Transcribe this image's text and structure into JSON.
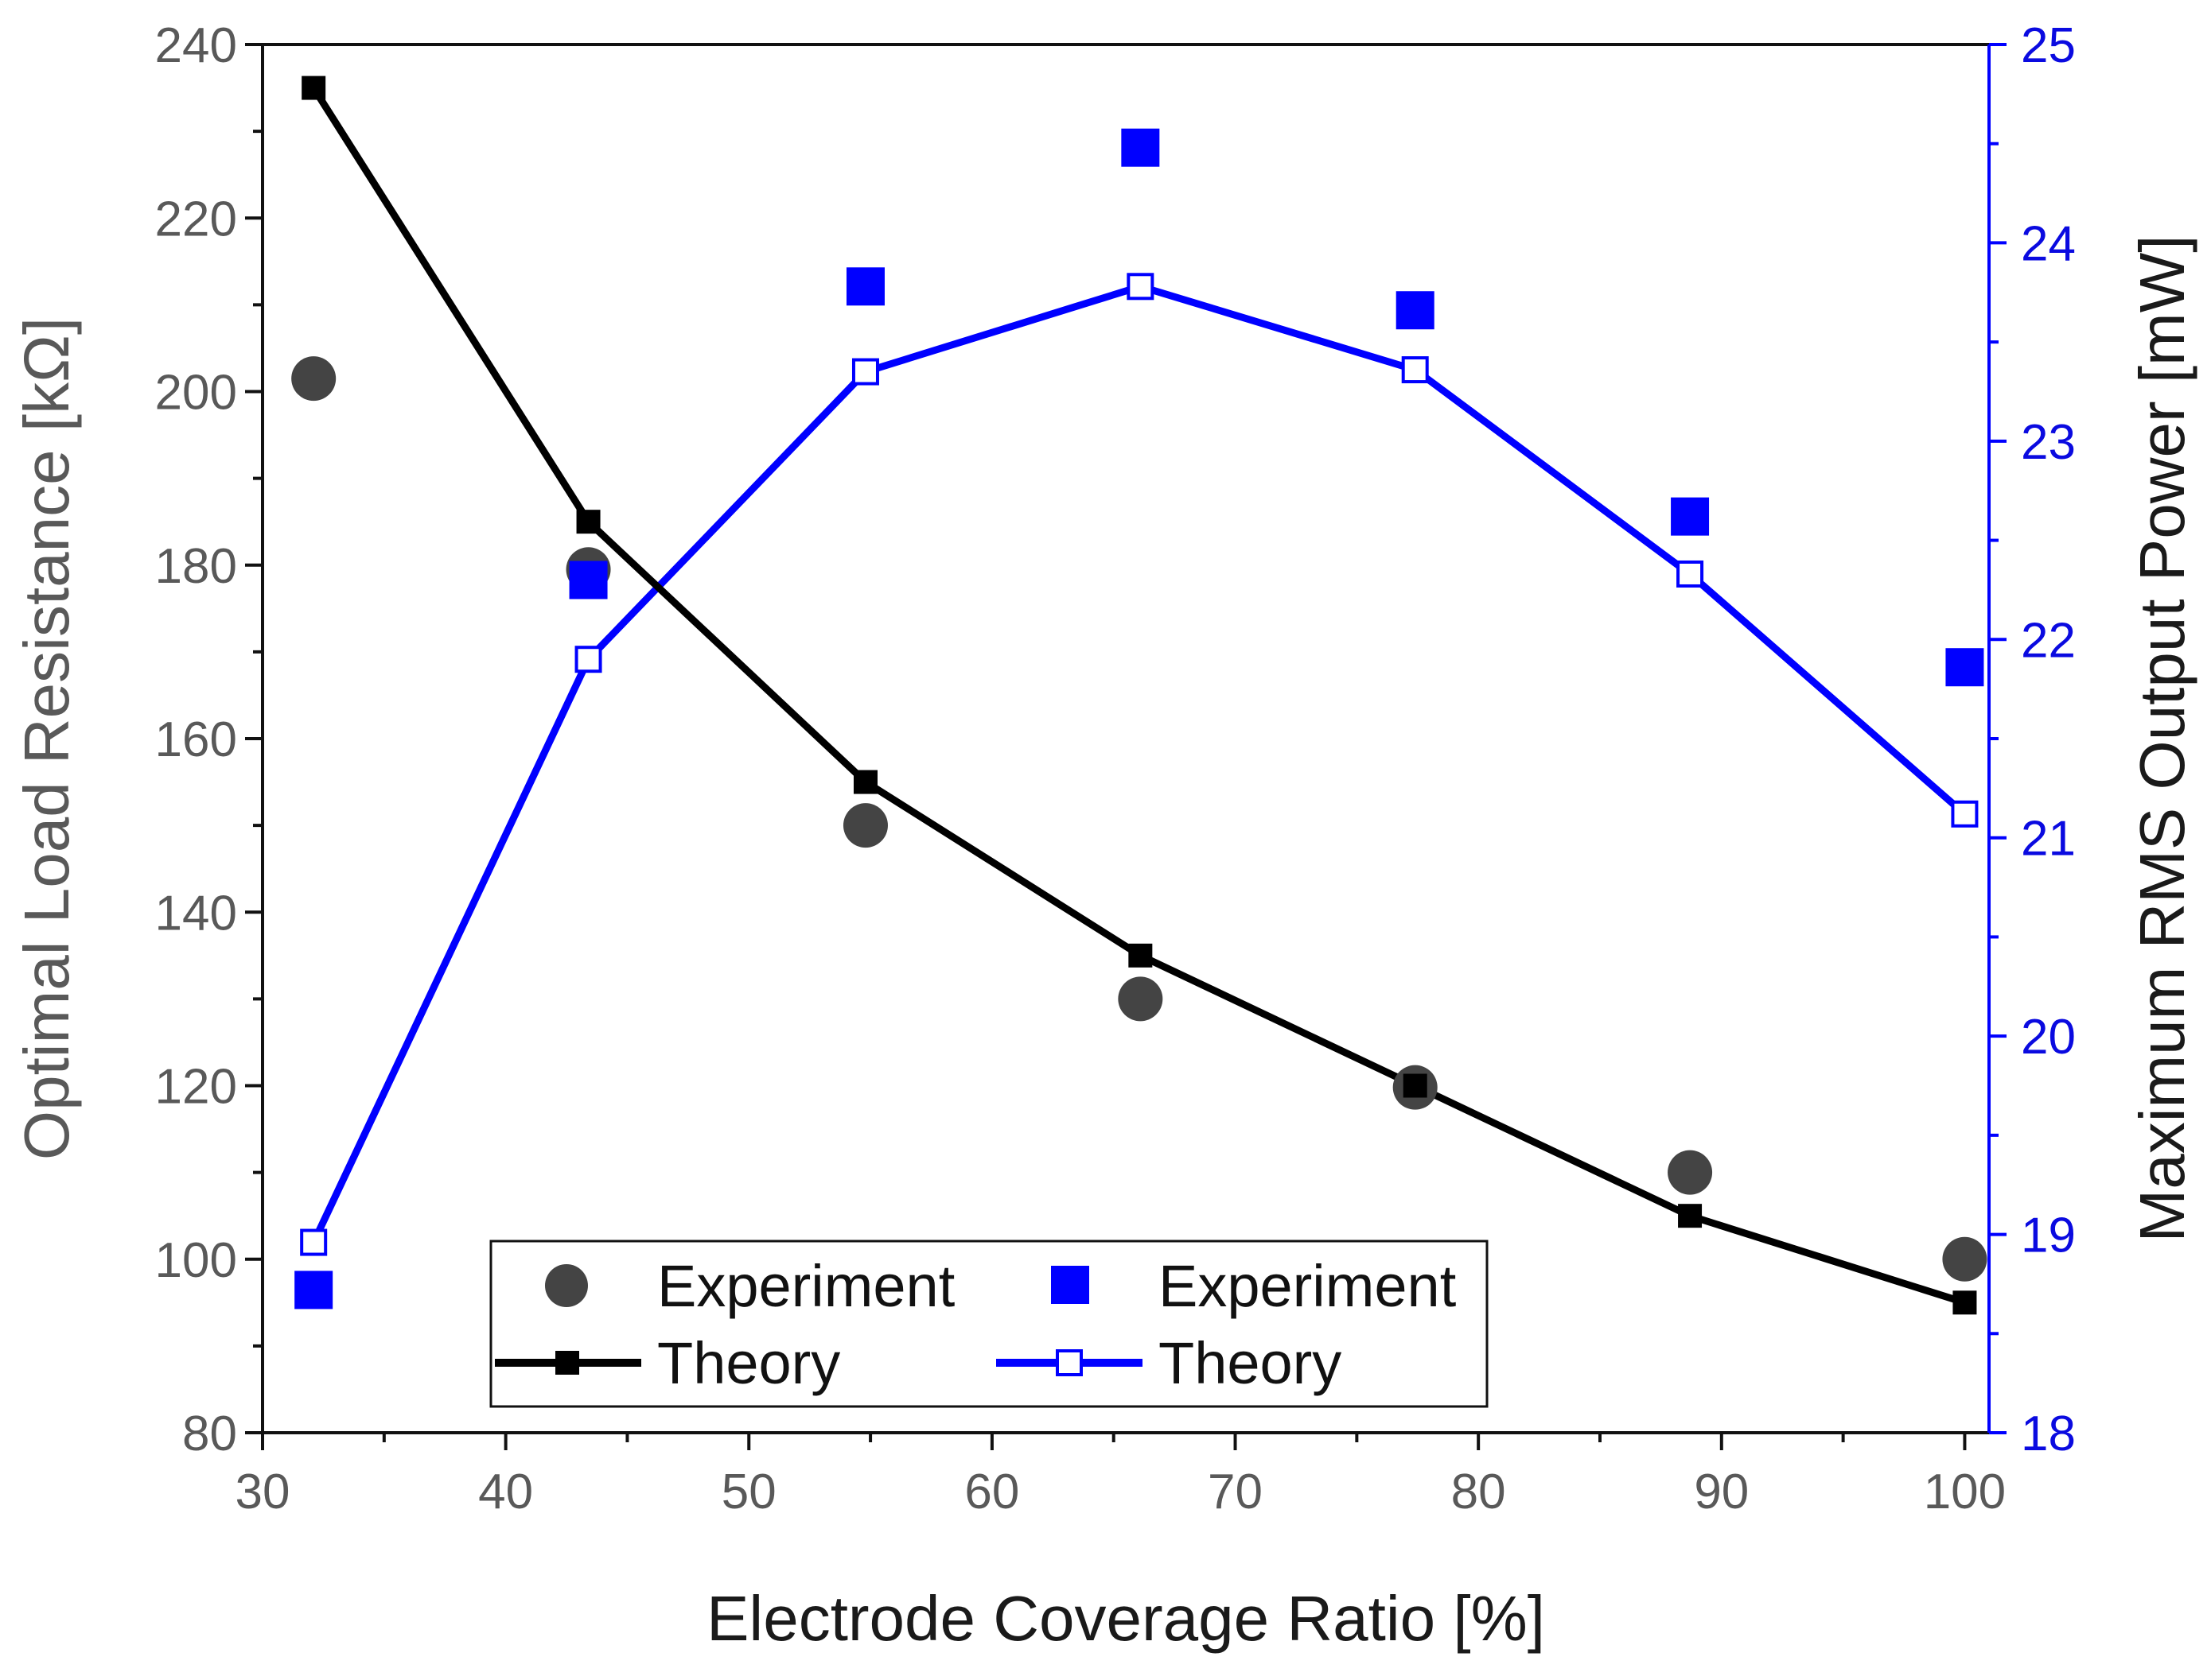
{
  "chart_data": {
    "type": "line",
    "xlabel": "Electrode Coverage Ratio [%]",
    "ylabel_left": "Optimal Load Resistance [kΩ]",
    "ylabel_right": "Maximum RMS Output Power [mW]",
    "xlim": [
      30,
      101
    ],
    "ylim_left": [
      80,
      240
    ],
    "ylim_right": [
      18,
      25
    ],
    "x_ticks": [
      30,
      40,
      50,
      60,
      70,
      80,
      90,
      100
    ],
    "y_left_ticks": [
      80,
      100,
      120,
      140,
      160,
      180,
      200,
      220,
      240
    ],
    "y_right_ticks": [
      18,
      19,
      20,
      21,
      22,
      23,
      24,
      25
    ],
    "grid": false,
    "colors": {
      "resistance_experiment": "#444444",
      "resistance_theory": "#000000",
      "power": "#0000ff"
    },
    "series": [
      {
        "name": "Experiment",
        "axis": "left",
        "style": "circle",
        "x": [
          32.1,
          43.4,
          54.8,
          66.1,
          77.4,
          88.7,
          100
        ],
        "values": [
          201.5,
          179.5,
          150,
          130,
          119.8,
          110,
          100
        ]
      },
      {
        "name": "Theory",
        "axis": "left",
        "style": "line-filled-square",
        "x": [
          32.1,
          43.4,
          54.8,
          66.1,
          77.4,
          88.7,
          100
        ],
        "values": [
          235,
          185,
          155,
          135,
          120,
          105,
          95
        ]
      },
      {
        "name": "Experiment",
        "axis": "right",
        "style": "filled-square",
        "x": [
          32.1,
          43.4,
          54.8,
          66.1,
          77.4,
          88.7,
          100
        ],
        "values": [
          18.72,
          22.3,
          23.78,
          24.48,
          23.66,
          22.62,
          21.86
        ]
      },
      {
        "name": "Theory",
        "axis": "right",
        "style": "line-open-square",
        "x": [
          32.1,
          43.4,
          54.8,
          66.1,
          77.4,
          88.7,
          100
        ],
        "values": [
          18.96,
          21.9,
          23.35,
          23.78,
          23.36,
          22.33,
          21.12
        ]
      }
    ],
    "legend": {
      "position": "bottom-center",
      "entries": [
        "Experiment",
        "Experiment",
        "Theory",
        "Theory"
      ]
    }
  }
}
